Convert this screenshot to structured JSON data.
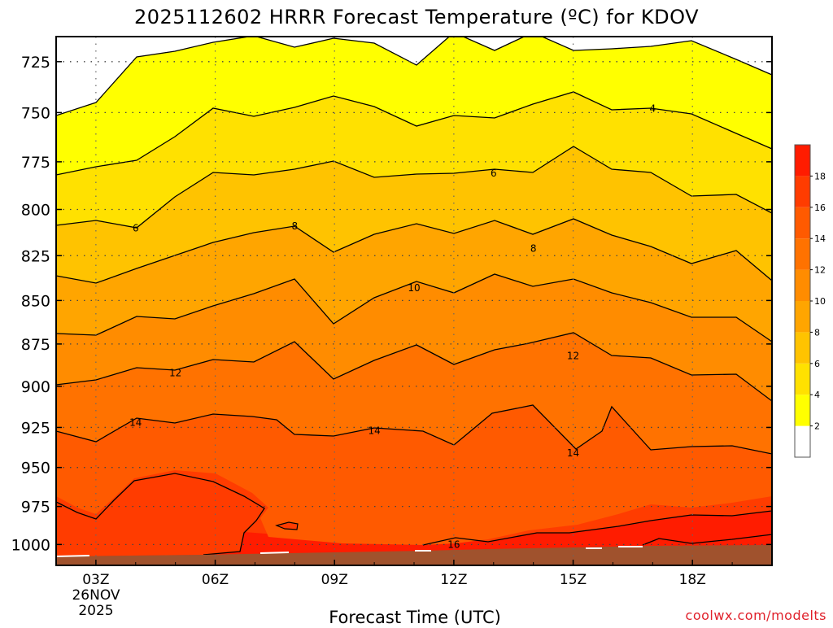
{
  "chart_data": {
    "type": "contour",
    "title": "2025112602 HRRR Forecast Temperature (ºC) for KDOV",
    "xlabel": "Forecast Time (UTC)",
    "ylabel": "",
    "x_ticks": [
      "03Z",
      "06Z",
      "09Z",
      "12Z",
      "15Z",
      "18Z"
    ],
    "x_date_line1": "26NOV",
    "x_date_line2": "2025",
    "x_range_hours": [
      2,
      20
    ],
    "y_ticks": [
      725,
      750,
      775,
      800,
      825,
      850,
      875,
      900,
      925,
      950,
      975,
      1000
    ],
    "y_range_hpa": [
      713,
      1014
    ],
    "y_scale": "log-pressure (inverted)",
    "grid": "dotted",
    "colorbar": {
      "ticks": [
        2,
        4,
        6,
        8,
        10,
        12,
        14,
        16,
        18
      ],
      "colors": [
        "#ffffff",
        "#ffff00",
        "#ffe100",
        "#ffc300",
        "#ffa500",
        "#ff8c00",
        "#ff7200",
        "#ff5a00",
        "#ff3c00",
        "#ff1c00"
      ]
    },
    "contour_labels": [
      {
        "text": "4",
        "hour": 17,
        "hpa": 748
      },
      {
        "text": "6",
        "hour": 4,
        "hpa": 810
      },
      {
        "text": "6",
        "hour": 13,
        "hpa": 781
      },
      {
        "text": "8",
        "hour": 8,
        "hpa": 809
      },
      {
        "text": "8",
        "hour": 14,
        "hpa": 821
      },
      {
        "text": "10",
        "hour": 11,
        "hpa": 843
      },
      {
        "text": "12",
        "hour": 5,
        "hpa": 892
      },
      {
        "text": "12",
        "hour": 15,
        "hpa": 882
      },
      {
        "text": "14",
        "hour": 4,
        "hpa": 922
      },
      {
        "text": "14",
        "hour": 10,
        "hpa": 927
      },
      {
        "text": "14",
        "hour": 15,
        "hpa": 941
      },
      {
        "text": "16",
        "hour": 12,
        "hpa": 1000
      }
    ],
    "surface_color": "#a0522d"
  },
  "credit": "coolwx.com/modelts"
}
